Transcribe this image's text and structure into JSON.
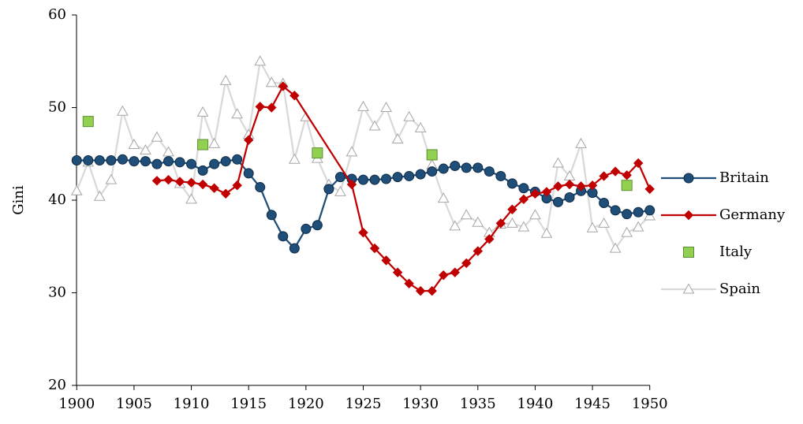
{
  "chart_data": {
    "type": "line",
    "y_label": "Gini",
    "xlim": [
      1899.5,
      1950.5
    ],
    "xticks": [
      1900,
      1905,
      1910,
      1915,
      1920,
      1925,
      1930,
      1935,
      1940,
      1945,
      1950
    ],
    "ylim": [
      20,
      60
    ],
    "yticks": [
      20,
      30,
      40,
      50,
      60
    ],
    "grid": false,
    "legend": "right",
    "series": [
      {
        "name": "Britain",
        "color": "#1f4e79",
        "marker": "circle",
        "line": true,
        "x": [
          1900,
          1901,
          1902,
          1903,
          1904,
          1905,
          1906,
          1907,
          1908,
          1909,
          1910,
          1911,
          1912,
          1913,
          1914,
          1915,
          1916,
          1917,
          1918,
          1919,
          1920,
          1921,
          1922,
          1923,
          1924,
          1925,
          1926,
          1927,
          1928,
          1929,
          1930,
          1931,
          1932,
          1933,
          1934,
          1935,
          1936,
          1937,
          1938,
          1939,
          1940,
          1941,
          1942,
          1943,
          1944,
          1945,
          1946,
          1947,
          1948,
          1949,
          1950
        ],
        "values": [
          44.3,
          44.3,
          44.3,
          44.3,
          44.4,
          44.2,
          44.2,
          43.9,
          44.2,
          44.1,
          43.9,
          43.2,
          43.9,
          44.2,
          44.4,
          42.9,
          41.4,
          38.4,
          36.1,
          34.8,
          36.9,
          37.3,
          41.2,
          42.5,
          42.3,
          42.2,
          42.2,
          42.3,
          42.5,
          42.6,
          42.8,
          43.1,
          43.4,
          43.7,
          43.5,
          43.5,
          43.1,
          42.6,
          41.8,
          41.3,
          40.9,
          40.2,
          39.8,
          40.3,
          41.0,
          40.8,
          39.7,
          38.9,
          38.5,
          38.7,
          38.9
        ]
      },
      {
        "name": "Germany",
        "color": "#c00000",
        "marker": "diamond",
        "line": true,
        "x": [
          1907,
          1908,
          1909,
          1910,
          1911,
          1912,
          1913,
          1914,
          1915,
          1916,
          1917,
          1918,
          1919,
          1924,
          1925,
          1926,
          1927,
          1928,
          1929,
          1930,
          1931,
          1932,
          1933,
          1934,
          1935,
          1936,
          1937,
          1938,
          1939,
          1940,
          1941,
          1942,
          1943,
          1944,
          1945,
          1946,
          1947,
          1948,
          1949,
          1950
        ],
        "values": [
          42.1,
          42.2,
          42.0,
          41.9,
          41.7,
          41.3,
          40.7,
          41.6,
          46.5,
          50.1,
          50.0,
          52.3,
          51.3,
          41.7,
          36.5,
          34.8,
          33.5,
          32.2,
          31.0,
          30.2,
          30.2,
          31.9,
          32.2,
          33.2,
          34.5,
          35.8,
          37.5,
          39.0,
          40.1,
          40.7,
          40.9,
          41.5,
          41.7,
          41.5,
          41.6,
          42.6,
          43.1,
          42.7,
          44.0,
          41.2
        ]
      },
      {
        "name": "Italy",
        "color": "#92d050",
        "marker": "square",
        "line": false,
        "x": [
          1901,
          1911,
          1921,
          1931,
          1948
        ],
        "values": [
          48.5,
          46.0,
          45.1,
          44.9,
          41.6
        ]
      },
      {
        "name": "Spain",
        "color": "#d9d9d9",
        "marker": "triangle",
        "line": true,
        "x": [
          1900,
          1901,
          1902,
          1903,
          1904,
          1905,
          1906,
          1907,
          1908,
          1909,
          1910,
          1911,
          1912,
          1913,
          1914,
          1915,
          1916,
          1917,
          1918,
          1919,
          1920,
          1921,
          1922,
          1923,
          1924,
          1925,
          1926,
          1927,
          1928,
          1929,
          1930,
          1931,
          1932,
          1933,
          1934,
          1935,
          1936,
          1937,
          1938,
          1939,
          1940,
          1941,
          1942,
          1943,
          1944,
          1945,
          1946,
          1947,
          1948,
          1949,
          1950
        ],
        "values": [
          41.0,
          44.1,
          40.4,
          42.2,
          49.6,
          46.0,
          45.4,
          46.8,
          45.2,
          41.8,
          40.1,
          49.5,
          46.1,
          52.9,
          49.3,
          47.1,
          55.0,
          52.7,
          52.6,
          44.4,
          49.0,
          44.5,
          41.7,
          40.9,
          45.2,
          50.1,
          48.0,
          50.0,
          46.6,
          49.0,
          47.8,
          43.8,
          40.2,
          37.2,
          38.4,
          37.6,
          36.5,
          37.4,
          37.5,
          37.1,
          38.4,
          36.4,
          44.0,
          42.6,
          46.1,
          37.0,
          37.5,
          34.8,
          36.5,
          37.1,
          38.3
        ]
      }
    ]
  }
}
